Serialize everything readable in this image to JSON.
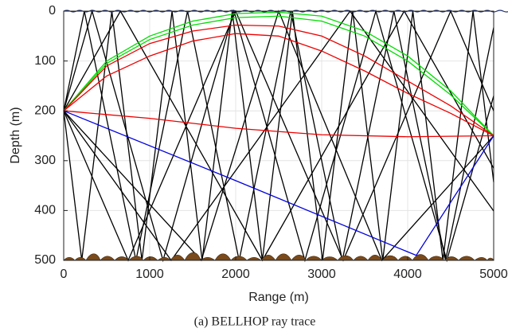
{
  "chart_data": {
    "type": "line",
    "xlabel": "Range (m)",
    "ylabel": "Depth (m)",
    "caption": "(a) BELLHOP ray trace",
    "xlim": [
      0,
      5000
    ],
    "xticks": [
      0,
      1000,
      2000,
      3000,
      4000,
      5000
    ],
    "ylim": [
      0,
      500
    ],
    "yticks": [
      0,
      100,
      200,
      300,
      400,
      500
    ],
    "y_reversed": true,
    "grid": true,
    "series": [
      {
        "color": "#000000",
        "x": [
          0,
          330,
          1155,
          1980,
          2805,
          3630,
          4455,
          5000
        ],
        "values": [
          200,
          0,
          500,
          0,
          500,
          0,
          500,
          170
        ]
      },
      {
        "color": "#000000",
        "x": [
          0,
          1250,
          3330,
          5000
        ],
        "values": [
          200,
          500,
          0,
          401
        ]
      },
      {
        "color": "#000000",
        "x": [
          0,
          240,
          840,
          1440,
          2040,
          2640,
          3240,
          3840,
          4440,
          5000
        ],
        "values": [
          200,
          0,
          500,
          0,
          500,
          0,
          500,
          0,
          500,
          33
        ]
      },
      {
        "color": "#000000",
        "x": [
          0,
          750,
          2000,
          3250,
          4500,
          5000
        ],
        "values": [
          200,
          500,
          0,
          500,
          0,
          200
        ]
      },
      {
        "color": "#000000",
        "x": [
          0,
          210,
          560,
          910,
          1260,
          1610,
          1960,
          2310,
          2660,
          3010,
          3360,
          3710,
          4060,
          4410,
          4760,
          5000
        ],
        "values": [
          200,
          500,
          0,
          500,
          0,
          500,
          0,
          500,
          0,
          500,
          0,
          500,
          0,
          500,
          0,
          343
        ]
      },
      {
        "color": "#000000",
        "x": [
          0,
          660,
          2310,
          3960,
          5000
        ],
        "values": [
          200,
          0,
          500,
          0,
          315
        ]
      },
      {
        "color": "#000000",
        "x": [
          0,
          1600,
          2500,
          3700,
          5000
        ],
        "values": [
          200,
          500,
          0,
          500,
          250
        ]
      },
      {
        "color": "#00dd00",
        "x": [
          0,
          500,
          1000,
          1500,
          2000,
          2500,
          3000,
          3500,
          4000,
          4500,
          5000
        ],
        "values": [
          200,
          100,
          50,
          20,
          5,
          2,
          10,
          40,
          90,
          160,
          250
        ]
      },
      {
        "color": "#00dd00",
        "x": [
          0,
          500,
          1000,
          1500,
          2000,
          2500,
          3000,
          3500,
          4000,
          4500,
          5000
        ],
        "values": [
          200,
          105,
          57,
          28,
          13,
          10,
          20,
          50,
          100,
          168,
          250
        ]
      },
      {
        "color": "#ee0000",
        "x": [
          0,
          500,
          1000,
          1500,
          2000,
          2500,
          3000,
          3500,
          4000,
          4500,
          5000
        ],
        "values": [
          200,
          110,
          65,
          40,
          28,
          30,
          50,
          90,
          140,
          190,
          250
        ]
      },
      {
        "color": "#ee0000",
        "x": [
          0,
          500,
          1000,
          1500,
          2000,
          2500,
          3000,
          3500,
          4000,
          4500,
          5000
        ],
        "values": [
          200,
          130,
          90,
          60,
          45,
          50,
          80,
          120,
          165,
          205,
          250
        ]
      },
      {
        "color": "#ee0000",
        "x": [
          0,
          1000,
          2000,
          3000,
          4000,
          5000
        ],
        "values": [
          200,
          215,
          235,
          248,
          252,
          250
        ]
      },
      {
        "color": "#0000dd",
        "x": [
          0,
          2000,
          4100,
          5000
        ],
        "values": [
          200,
          340,
          490,
          250
        ]
      }
    ]
  }
}
